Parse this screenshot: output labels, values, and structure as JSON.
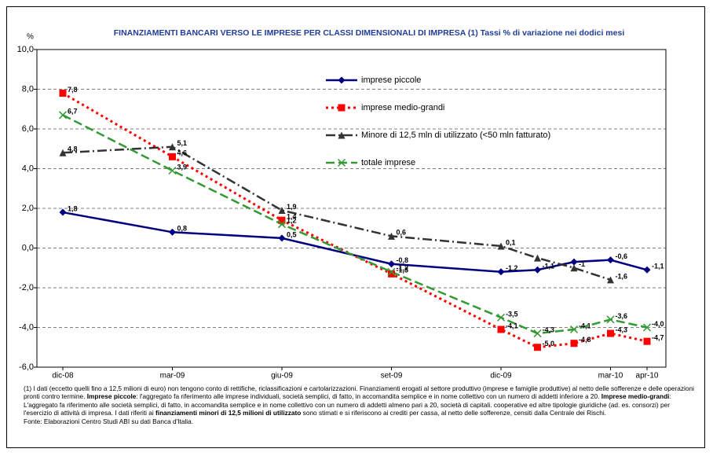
{
  "chart_data": {
    "type": "line",
    "title": "FINANZIAMENTI BANCARI VERSO LE IMPRESE PER CLASSI DIMENSIONALI DI IMPRESA (1) Tassi % di variazione nei dodici mesi",
    "y_label": "%",
    "categories": [
      "dic-08",
      null,
      null,
      "mar-09",
      null,
      null,
      "giu-09",
      null,
      null,
      "set-09",
      null,
      null,
      "dic-09",
      null,
      null,
      "mar-10",
      "apr-10"
    ],
    "ylim": [
      -6,
      10
    ],
    "yticks": [
      {
        "value": -6,
        "label": "-6,0"
      },
      {
        "value": -4,
        "label": "-4,0"
      },
      {
        "value": -2,
        "label": "-2,0"
      },
      {
        "value": 0,
        "label": "0,0"
      },
      {
        "value": 2,
        "label": "2,0"
      },
      {
        "value": 4,
        "label": "4,0"
      },
      {
        "value": 6,
        "label": "6,0"
      },
      {
        "value": 8,
        "label": "8,0"
      },
      {
        "value": 10,
        "label": "10,0"
      }
    ],
    "grid": true,
    "series": [
      {
        "name": "imprese piccole",
        "color": "#000080",
        "marker": "diamond",
        "values": [
          1.8,
          null,
          null,
          0.8,
          null,
          null,
          0.5,
          null,
          null,
          -0.8,
          null,
          null,
          -1.2,
          -1.1,
          -0.7,
          -0.6,
          -1.1
        ],
        "value_labels": [
          "1,8",
          null,
          null,
          "0,8",
          null,
          null,
          "0,5",
          null,
          null,
          "-0,8",
          null,
          null,
          "-1,2",
          "-1,1",
          null,
          "-0,6",
          "-1,1"
        ]
      },
      {
        "name": "imprese medio-grandi",
        "color": "#ff0000",
        "marker": "square",
        "values": [
          7.8,
          null,
          null,
          4.6,
          null,
          null,
          1.4,
          null,
          null,
          -1.3,
          null,
          null,
          -4.1,
          -5.0,
          -4.8,
          -4.3,
          -4.7
        ],
        "value_labels": [
          "7,8",
          null,
          null,
          "4,6",
          null,
          null,
          "1,4",
          null,
          null,
          "-1,3",
          null,
          null,
          "-4,1",
          "-5,0",
          "-4,8",
          "-4,3",
          "-4,7"
        ]
      },
      {
        "name": "Minore di 12,5 mln di utilizzato (<50 mln fatturato)",
        "color": "#333333",
        "marker": "triangle",
        "values": [
          4.8,
          null,
          null,
          5.1,
          null,
          null,
          1.9,
          null,
          null,
          0.6,
          null,
          null,
          0.1,
          -0.5,
          -1.0,
          -1.6,
          null
        ],
        "value_labels": [
          "4,8",
          null,
          null,
          "5,1",
          null,
          null,
          "1,9",
          null,
          null,
          "0,6",
          null,
          null,
          "0,1",
          null,
          "-1",
          "-1,6",
          null
        ]
      },
      {
        "name": "totale imprese",
        "color": "#339933",
        "marker": "x",
        "values": [
          6.7,
          null,
          null,
          3.9,
          null,
          null,
          1.2,
          null,
          null,
          -1.2,
          null,
          null,
          -3.5,
          -4.3,
          -4.1,
          -3.6,
          -4.0
        ],
        "value_labels": [
          "6,7",
          null,
          null,
          "3,9",
          null,
          null,
          "1,2",
          null,
          null,
          "-1,2",
          null,
          null,
          "-3,5",
          "-4,3",
          "-4,1",
          "-3,6",
          "-4,0"
        ]
      }
    ],
    "footnote": [
      "(1) I dati (eccetto quelli fino a 12,5 milioni di euro) non tengono conto di rettifiche, riclassificazioni e cartolarizzazioni. Finanziamenti erogati al settore produttivo (imprese e famiglie produttive) al netto delle sofferenze e delle operazioni pronti contro termine. ",
      "Imprese piccole",
      ": l'aggregato fa riferimento alle imprese individuali, società semplici, di fatto, in accomandita semplice e in nome collettivo con un numero di addetti inferiore a 20. ",
      "Imprese medio-grandi",
      ": L'aggregato fa riferimento alle società semplici, di fatto, in accomandita semplice e in nome collettivo con un numero di addetti almeno pari a 20, società di capitali. cooperative ed altre tipologie giuridiche (ad. es. consorzi) per l'esercizio di attività di impresa. I dati riferiti ai ",
      "finanziamenti minori di 12,5 milioni di utilizzato",
      " sono stimati e si riferiscono ai crediti per cassa, al netto delle sofferenze, censiti dalla Centrale dei Rischi."
    ],
    "source": "Fonte: Elaborazioni Centro Studi ABI su dati Banca d'Italia."
  }
}
